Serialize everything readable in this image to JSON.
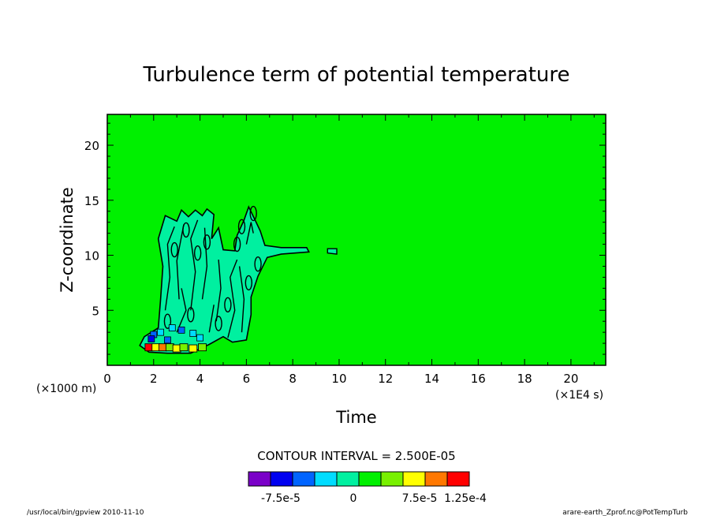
{
  "chart_data": {
    "type": "heatmap",
    "title": "Turbulence term of potential temperature",
    "xlabel": "Time",
    "ylabel": "Z-coordinate",
    "x_unit": "(×1E4 s)",
    "y_unit": "(×1000 m)",
    "xlim": [
      0,
      21.5
    ],
    "ylim": [
      0,
      22.8
    ],
    "x_ticks": [
      0,
      2,
      4,
      6,
      8,
      10,
      12,
      14,
      16,
      18,
      20
    ],
    "y_ticks": [
      5,
      10,
      15,
      20
    ],
    "background_value": 0,
    "contour_interval_label": "CONTOUR INTERVAL = 2.500E-05",
    "colorbar": {
      "colors": [
        "#7a00c8",
        "#0000f0",
        "#0064ff",
        "#00dcff",
        "#00f0a0",
        "#00f000",
        "#78f000",
        "#ffff00",
        "#ff7800",
        "#ff0000"
      ],
      "labels": [
        "-7.5e-5",
        "0",
        "7.5e-5",
        "1.25e-4"
      ]
    }
  },
  "footer": {
    "left": "/usr/local/bin/gpview  2010-11-10",
    "right": "arare-earth_Zprof.nc@PotTempTurb"
  }
}
